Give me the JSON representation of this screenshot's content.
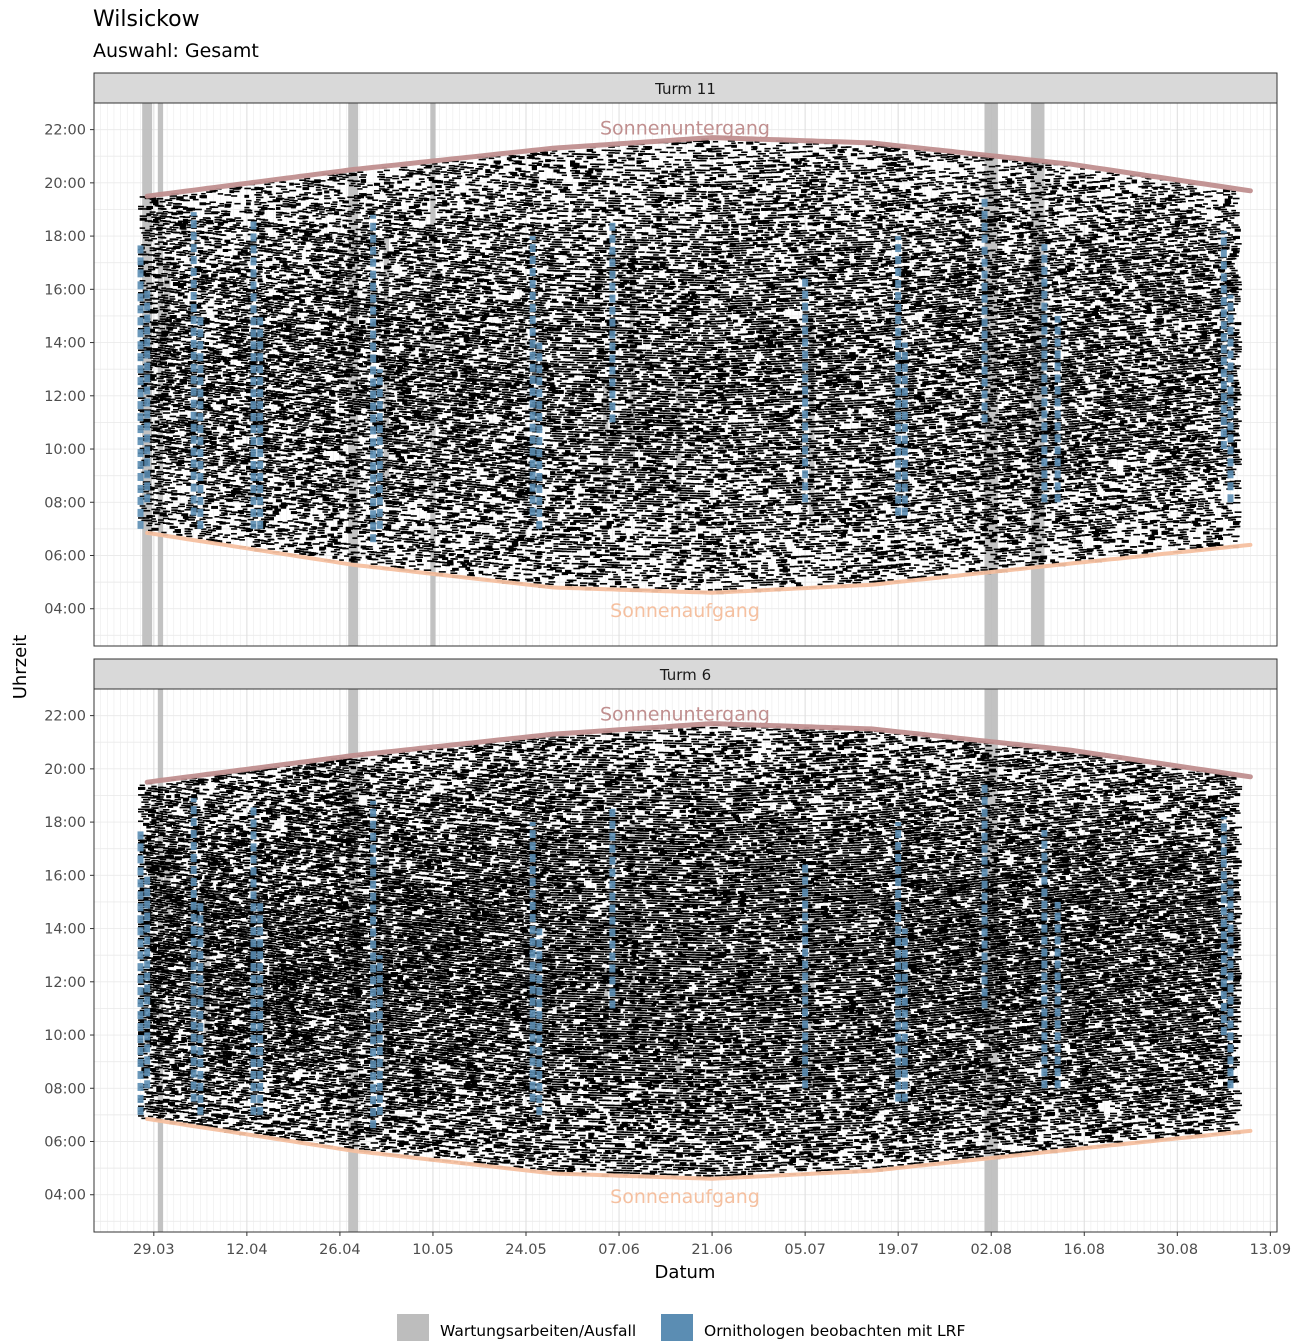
{
  "header": {
    "title": "Wilsickow",
    "subtitle": "Auswahl: Gesamt"
  },
  "legend": {
    "items": [
      {
        "label": "Wartungsarbeiten/Ausfall",
        "color": "#bdbdbd"
      },
      {
        "label": "Ornithologen beobachten mit LRF",
        "color": "#5b8db3"
      }
    ]
  },
  "chart_data": {
    "type": "scatter",
    "xlabel": "Datum",
    "ylabel": "Uhrzeit",
    "x_axis": {
      "type": "date",
      "range": [
        "2024-03-20",
        "2024-09-14"
      ],
      "ticks": [
        "2024-03-29",
        "2024-04-12",
        "2024-04-26",
        "2024-05-10",
        "2024-05-24",
        "2024-06-07",
        "2024-06-21",
        "2024-07-05",
        "2024-07-19",
        "2024-08-02",
        "2024-08-16",
        "2024-08-30",
        "2024-09-13"
      ],
      "tick_labels": [
        "29.03",
        "12.04",
        "26.04",
        "10.05",
        "24.05",
        "07.06",
        "21.06",
        "05.07",
        "19.07",
        "02.08",
        "16.08",
        "30.08",
        "13.09"
      ]
    },
    "y_axis": {
      "unit": "hours",
      "range": [
        2.6,
        23.0
      ],
      "ticks": [
        4,
        6,
        8,
        10,
        12,
        14,
        16,
        18,
        20,
        22
      ],
      "tick_labels": [
        "04:00",
        "06:00",
        "08:00",
        "10:00",
        "12:00",
        "14:00",
        "16:00",
        "18:00",
        "20:00",
        "22:00"
      ]
    },
    "sun_curves": {
      "sunset": {
        "label": "Sonnenuntergang",
        "color": "#c08f8f",
        "dates": [
          "2024-03-28",
          "2024-04-28",
          "2024-05-28",
          "2024-06-21",
          "2024-07-15",
          "2024-08-14",
          "2024-09-10"
        ],
        "hours": [
          19.5,
          20.5,
          21.3,
          21.7,
          21.5,
          20.7,
          19.7
        ]
      },
      "sunrise": {
        "label": "Sonnenaufgang",
        "color": "#f5c0a0",
        "dates": [
          "2024-03-28",
          "2024-04-28",
          "2024-05-28",
          "2024-06-21",
          "2024-07-15",
          "2024-08-14",
          "2024-09-10"
        ],
        "hours": [
          6.85,
          5.65,
          4.8,
          4.6,
          4.9,
          5.7,
          6.4
        ]
      }
    },
    "panels": [
      {
        "label": "Turm 11",
        "detections_color": "#000000",
        "maintenance": [
          {
            "date": "2024-03-28",
            "width_days": 1.5,
            "start": 2.6,
            "end": 23.0
          },
          {
            "date": "2024-03-30",
            "width_days": 0.8,
            "start": 2.6,
            "end": 23.0
          },
          {
            "date": "2024-04-28",
            "width_days": 1.5,
            "start": 2.6,
            "end": 23.0
          },
          {
            "date": "2024-05-10",
            "width_days": 0.8,
            "start": 2.6,
            "end": 23.0
          },
          {
            "date": "2024-08-02",
            "width_days": 2.0,
            "start": 2.6,
            "end": 23.0
          },
          {
            "date": "2024-08-09",
            "width_days": 2.0,
            "start": 2.6,
            "end": 23.0
          },
          {
            "date": "2024-05-03",
            "width_days": 0.8,
            "start": 8.5,
            "end": 18.0
          },
          {
            "date": "2024-06-05",
            "width_days": 0.8,
            "start": 8.0,
            "end": 12.5
          },
          {
            "date": "2024-06-09",
            "width_days": 0.8,
            "start": 9.0,
            "end": 18.0
          },
          {
            "date": "2024-06-16",
            "width_days": 0.8,
            "start": 7.0,
            "end": 13.0
          },
          {
            "date": "2024-07-06",
            "width_days": 0.8,
            "start": 7.5,
            "end": 15.0
          },
          {
            "date": "2024-03-31",
            "width_days": 1.0,
            "start": 14.0,
            "end": 17.0
          }
        ],
        "ornithologists": [
          {
            "date": "2024-03-27",
            "start": 7.0,
            "end": 17.8
          },
          {
            "date": "2024-03-28",
            "start": 8.0,
            "end": 16.0
          },
          {
            "date": "2024-04-04",
            "start": 7.5,
            "end": 18.9
          },
          {
            "date": "2024-04-05",
            "start": 7.0,
            "end": 15.0
          },
          {
            "date": "2024-04-13",
            "start": 7.0,
            "end": 18.7
          },
          {
            "date": "2024-04-14",
            "start": 7.0,
            "end": 15.0
          },
          {
            "date": "2024-05-01",
            "start": 6.5,
            "end": 18.8
          },
          {
            "date": "2024-05-02",
            "start": 7.0,
            "end": 13.0
          },
          {
            "date": "2024-05-25",
            "start": 7.5,
            "end": 18.0
          },
          {
            "date": "2024-05-26",
            "start": 7.0,
            "end": 14.0
          },
          {
            "date": "2024-06-06",
            "start": 11.0,
            "end": 18.5
          },
          {
            "date": "2024-07-05",
            "start": 8.0,
            "end": 16.4
          },
          {
            "date": "2024-07-19",
            "start": 7.5,
            "end": 18.0
          },
          {
            "date": "2024-07-20",
            "start": 7.5,
            "end": 14.0
          },
          {
            "date": "2024-08-01",
            "start": 11.0,
            "end": 19.5
          },
          {
            "date": "2024-08-10",
            "start": 8.0,
            "end": 17.7
          },
          {
            "date": "2024-08-12",
            "start": 8.0,
            "end": 15.0
          },
          {
            "date": "2024-09-06",
            "start": 10.0,
            "end": 18.2
          },
          {
            "date": "2024-09-07",
            "start": 8.0,
            "end": 15.8
          }
        ]
      },
      {
        "label": "Turm 6",
        "detections_color": "#000000",
        "maintenance": [
          {
            "date": "2024-03-30",
            "width_days": 0.8,
            "start": 2.6,
            "end": 23.0
          },
          {
            "date": "2024-04-28",
            "width_days": 1.5,
            "start": 2.6,
            "end": 23.0
          },
          {
            "date": "2024-08-02",
            "width_days": 2.0,
            "start": 2.6,
            "end": 23.0
          },
          {
            "date": "2024-05-03",
            "width_days": 0.8,
            "start": 8.5,
            "end": 18.0
          },
          {
            "date": "2024-06-05",
            "width_days": 0.8,
            "start": 8.0,
            "end": 12.5
          },
          {
            "date": "2024-06-09",
            "width_days": 0.8,
            "start": 9.0,
            "end": 18.0
          },
          {
            "date": "2024-06-16",
            "width_days": 0.8,
            "start": 7.0,
            "end": 13.0
          },
          {
            "date": "2024-07-06",
            "width_days": 0.8,
            "start": 7.5,
            "end": 15.0
          },
          {
            "date": "2024-03-31",
            "width_days": 1.0,
            "start": 14.0,
            "end": 17.0
          },
          {
            "date": "2024-04-06",
            "width_days": 0.8,
            "start": 10.0,
            "end": 15.0
          }
        ],
        "ornithologists": [
          {
            "date": "2024-03-27",
            "start": 7.0,
            "end": 17.8
          },
          {
            "date": "2024-03-28",
            "start": 8.0,
            "end": 16.0
          },
          {
            "date": "2024-04-04",
            "start": 7.5,
            "end": 18.9
          },
          {
            "date": "2024-04-05",
            "start": 7.0,
            "end": 15.0
          },
          {
            "date": "2024-04-13",
            "start": 7.0,
            "end": 18.7
          },
          {
            "date": "2024-04-14",
            "start": 7.0,
            "end": 15.0
          },
          {
            "date": "2024-05-01",
            "start": 6.5,
            "end": 18.8
          },
          {
            "date": "2024-05-02",
            "start": 7.0,
            "end": 13.0
          },
          {
            "date": "2024-05-25",
            "start": 7.5,
            "end": 18.0
          },
          {
            "date": "2024-05-26",
            "start": 7.0,
            "end": 14.0
          },
          {
            "date": "2024-06-06",
            "start": 11.0,
            "end": 18.5
          },
          {
            "date": "2024-07-05",
            "start": 8.0,
            "end": 16.4
          },
          {
            "date": "2024-07-19",
            "start": 7.5,
            "end": 18.0
          },
          {
            "date": "2024-07-20",
            "start": 7.5,
            "end": 14.0
          },
          {
            "date": "2024-08-01",
            "start": 11.0,
            "end": 19.5
          },
          {
            "date": "2024-08-10",
            "start": 8.0,
            "end": 17.7
          },
          {
            "date": "2024-08-12",
            "start": 8.0,
            "end": 15.0
          },
          {
            "date": "2024-09-06",
            "start": 10.0,
            "end": 18.2
          },
          {
            "date": "2024-09-07",
            "start": 8.0,
            "end": 15.8
          }
        ]
      }
    ],
    "legend_position": "bottom",
    "grid": true
  }
}
